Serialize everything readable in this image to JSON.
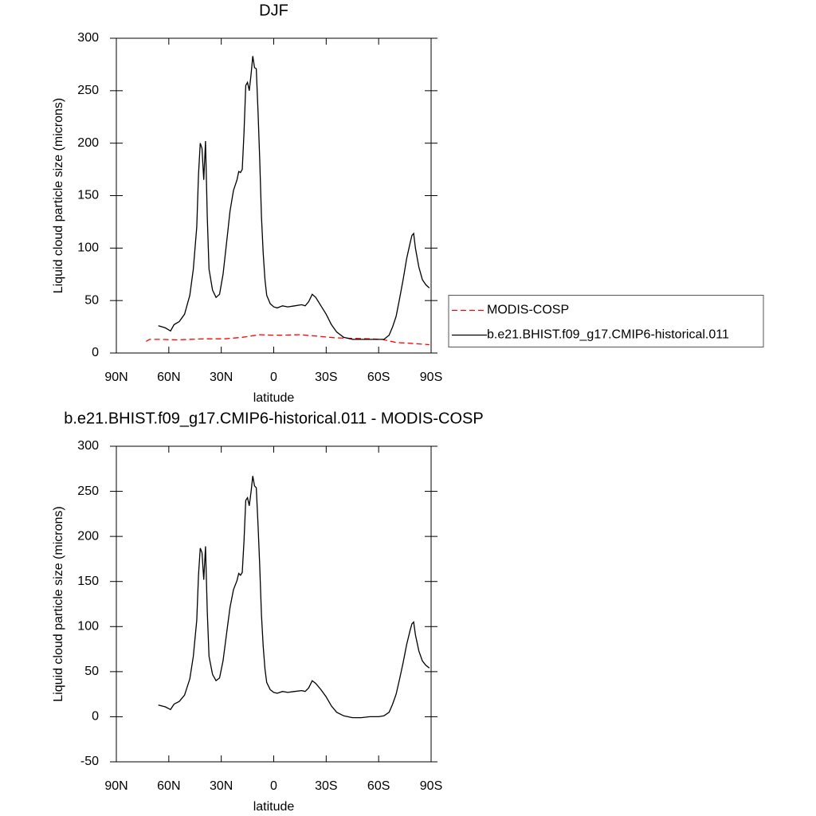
{
  "chart_data": [
    {
      "type": "line",
      "title": "DJF",
      "x_label": "latitude",
      "y_label": "Liquid cloud particle size (microns)",
      "xlim": [
        90,
        -90
      ],
      "xticks": [
        {
          "value": 90,
          "label": "90N"
        },
        {
          "value": 60,
          "label": "60N"
        },
        {
          "value": 30,
          "label": "30N"
        },
        0,
        {
          "value": -30,
          "label": "30S"
        },
        {
          "value": -60,
          "label": "60S"
        },
        {
          "value": -90,
          "label": "90S"
        }
      ],
      "ylim": [
        0,
        300
      ],
      "yticks": [
        0,
        50,
        100,
        150,
        200,
        250,
        300
      ],
      "legend": "right",
      "series": [
        {
          "name": "MODIS-COSP",
          "color": "#ff0000",
          "dash": true,
          "x": [
            73,
            71,
            65,
            55,
            40,
            28,
            18,
            8,
            0,
            -5,
            -15,
            -25,
            -35,
            -45,
            -55,
            -62,
            -70,
            -80,
            -89
          ],
          "values": [
            11,
            13,
            13,
            12.5,
            13.5,
            13.5,
            15,
            17.5,
            17,
            17,
            17.5,
            16,
            14.5,
            14,
            13.5,
            13,
            10,
            9,
            8
          ]
        },
        {
          "name": "b.e21.BHIST.f09_g17.CMIP6-historical.011",
          "color": "#000000",
          "dash": false,
          "x": [
            66,
            62,
            59,
            57,
            54,
            51,
            48,
            46,
            44,
            43,
            42,
            41,
            40,
            39,
            38,
            37,
            35,
            33,
            31,
            29,
            27,
            25,
            23,
            21,
            20,
            19,
            18,
            17,
            16,
            15,
            14,
            13,
            12,
            11,
            10,
            9,
            8,
            7,
            6,
            5,
            4,
            2,
            0,
            -2,
            -5,
            -8,
            -12,
            -16,
            -18,
            -20,
            -22,
            -24,
            -27,
            -30,
            -33,
            -36,
            -40,
            -45,
            -50,
            -55,
            -60,
            -63,
            -66,
            -68,
            -70,
            -72,
            -74,
            -76,
            -78,
            -79,
            -80,
            -81,
            -83,
            -85,
            -87,
            -89
          ],
          "values": [
            26,
            24,
            21,
            27,
            30,
            37,
            55,
            80,
            120,
            170,
            200,
            195,
            165,
            202,
            130,
            80,
            60,
            53,
            56,
            75,
            105,
            135,
            155,
            165,
            173,
            172,
            175,
            210,
            255,
            258,
            250,
            265,
            283,
            272,
            271,
            230,
            185,
            130,
            95,
            70,
            55,
            47,
            44,
            43,
            45,
            44,
            45,
            46,
            45,
            49,
            56,
            53,
            45,
            37,
            27,
            20,
            15,
            13,
            13,
            13,
            13,
            13,
            17,
            25,
            35,
            52,
            70,
            90,
            105,
            112,
            114,
            100,
            82,
            70,
            65,
            62
          ]
        }
      ]
    },
    {
      "type": "line",
      "title": "b.e21.BHIST.f09_g17.CMIP6-historical.011 - MODIS-COSP",
      "x_label": "latitude",
      "y_label": "Liquid cloud particle size (microns)",
      "xlim": [
        90,
        -90
      ],
      "xticks": [
        {
          "value": 90,
          "label": "90N"
        },
        {
          "value": 60,
          "label": "60N"
        },
        {
          "value": 30,
          "label": "30N"
        },
        0,
        {
          "value": -30,
          "label": "30S"
        },
        {
          "value": -60,
          "label": "60S"
        },
        {
          "value": -90,
          "label": "90S"
        }
      ],
      "ylim": [
        -50,
        300
      ],
      "yticks": [
        -50,
        0,
        50,
        100,
        150,
        200,
        250,
        300
      ],
      "series": [
        {
          "color": "#000000",
          "dash": false,
          "x": [
            66,
            62,
            59,
            57,
            54,
            51,
            48,
            46,
            44,
            43,
            42,
            41,
            40,
            39,
            38,
            37,
            35,
            33,
            31,
            29,
            27,
            25,
            23,
            21,
            20,
            19,
            18,
            17,
            16,
            15,
            14,
            13,
            12,
            11,
            10,
            9,
            8,
            7,
            6,
            5,
            4,
            2,
            0,
            -2,
            -5,
            -8,
            -12,
            -16,
            -18,
            -20,
            -22,
            -24,
            -27,
            -30,
            -33,
            -36,
            -40,
            -45,
            -50,
            -55,
            -60,
            -63,
            -66,
            -68,
            -70,
            -72,
            -74,
            -76,
            -78,
            -79,
            -80,
            -81,
            -83,
            -85,
            -87,
            -89
          ],
          "values": [
            13,
            11,
            8,
            14,
            17,
            24,
            42,
            67,
            107,
            157,
            187,
            182,
            152,
            189,
            117,
            67,
            47,
            40,
            43,
            62,
            92,
            121,
            141,
            151,
            159,
            157,
            160,
            195,
            240,
            243,
            234,
            249,
            267,
            256,
            254,
            213,
            168,
            113,
            78,
            53,
            38,
            30,
            27,
            26,
            28,
            27,
            28,
            29,
            28,
            32,
            40,
            37,
            30,
            22,
            12,
            5,
            1,
            -1,
            -1,
            0,
            0,
            1,
            5,
            14,
            25,
            42,
            60,
            80,
            96,
            103,
            105,
            91,
            73,
            62,
            57,
            54
          ]
        }
      ]
    }
  ]
}
